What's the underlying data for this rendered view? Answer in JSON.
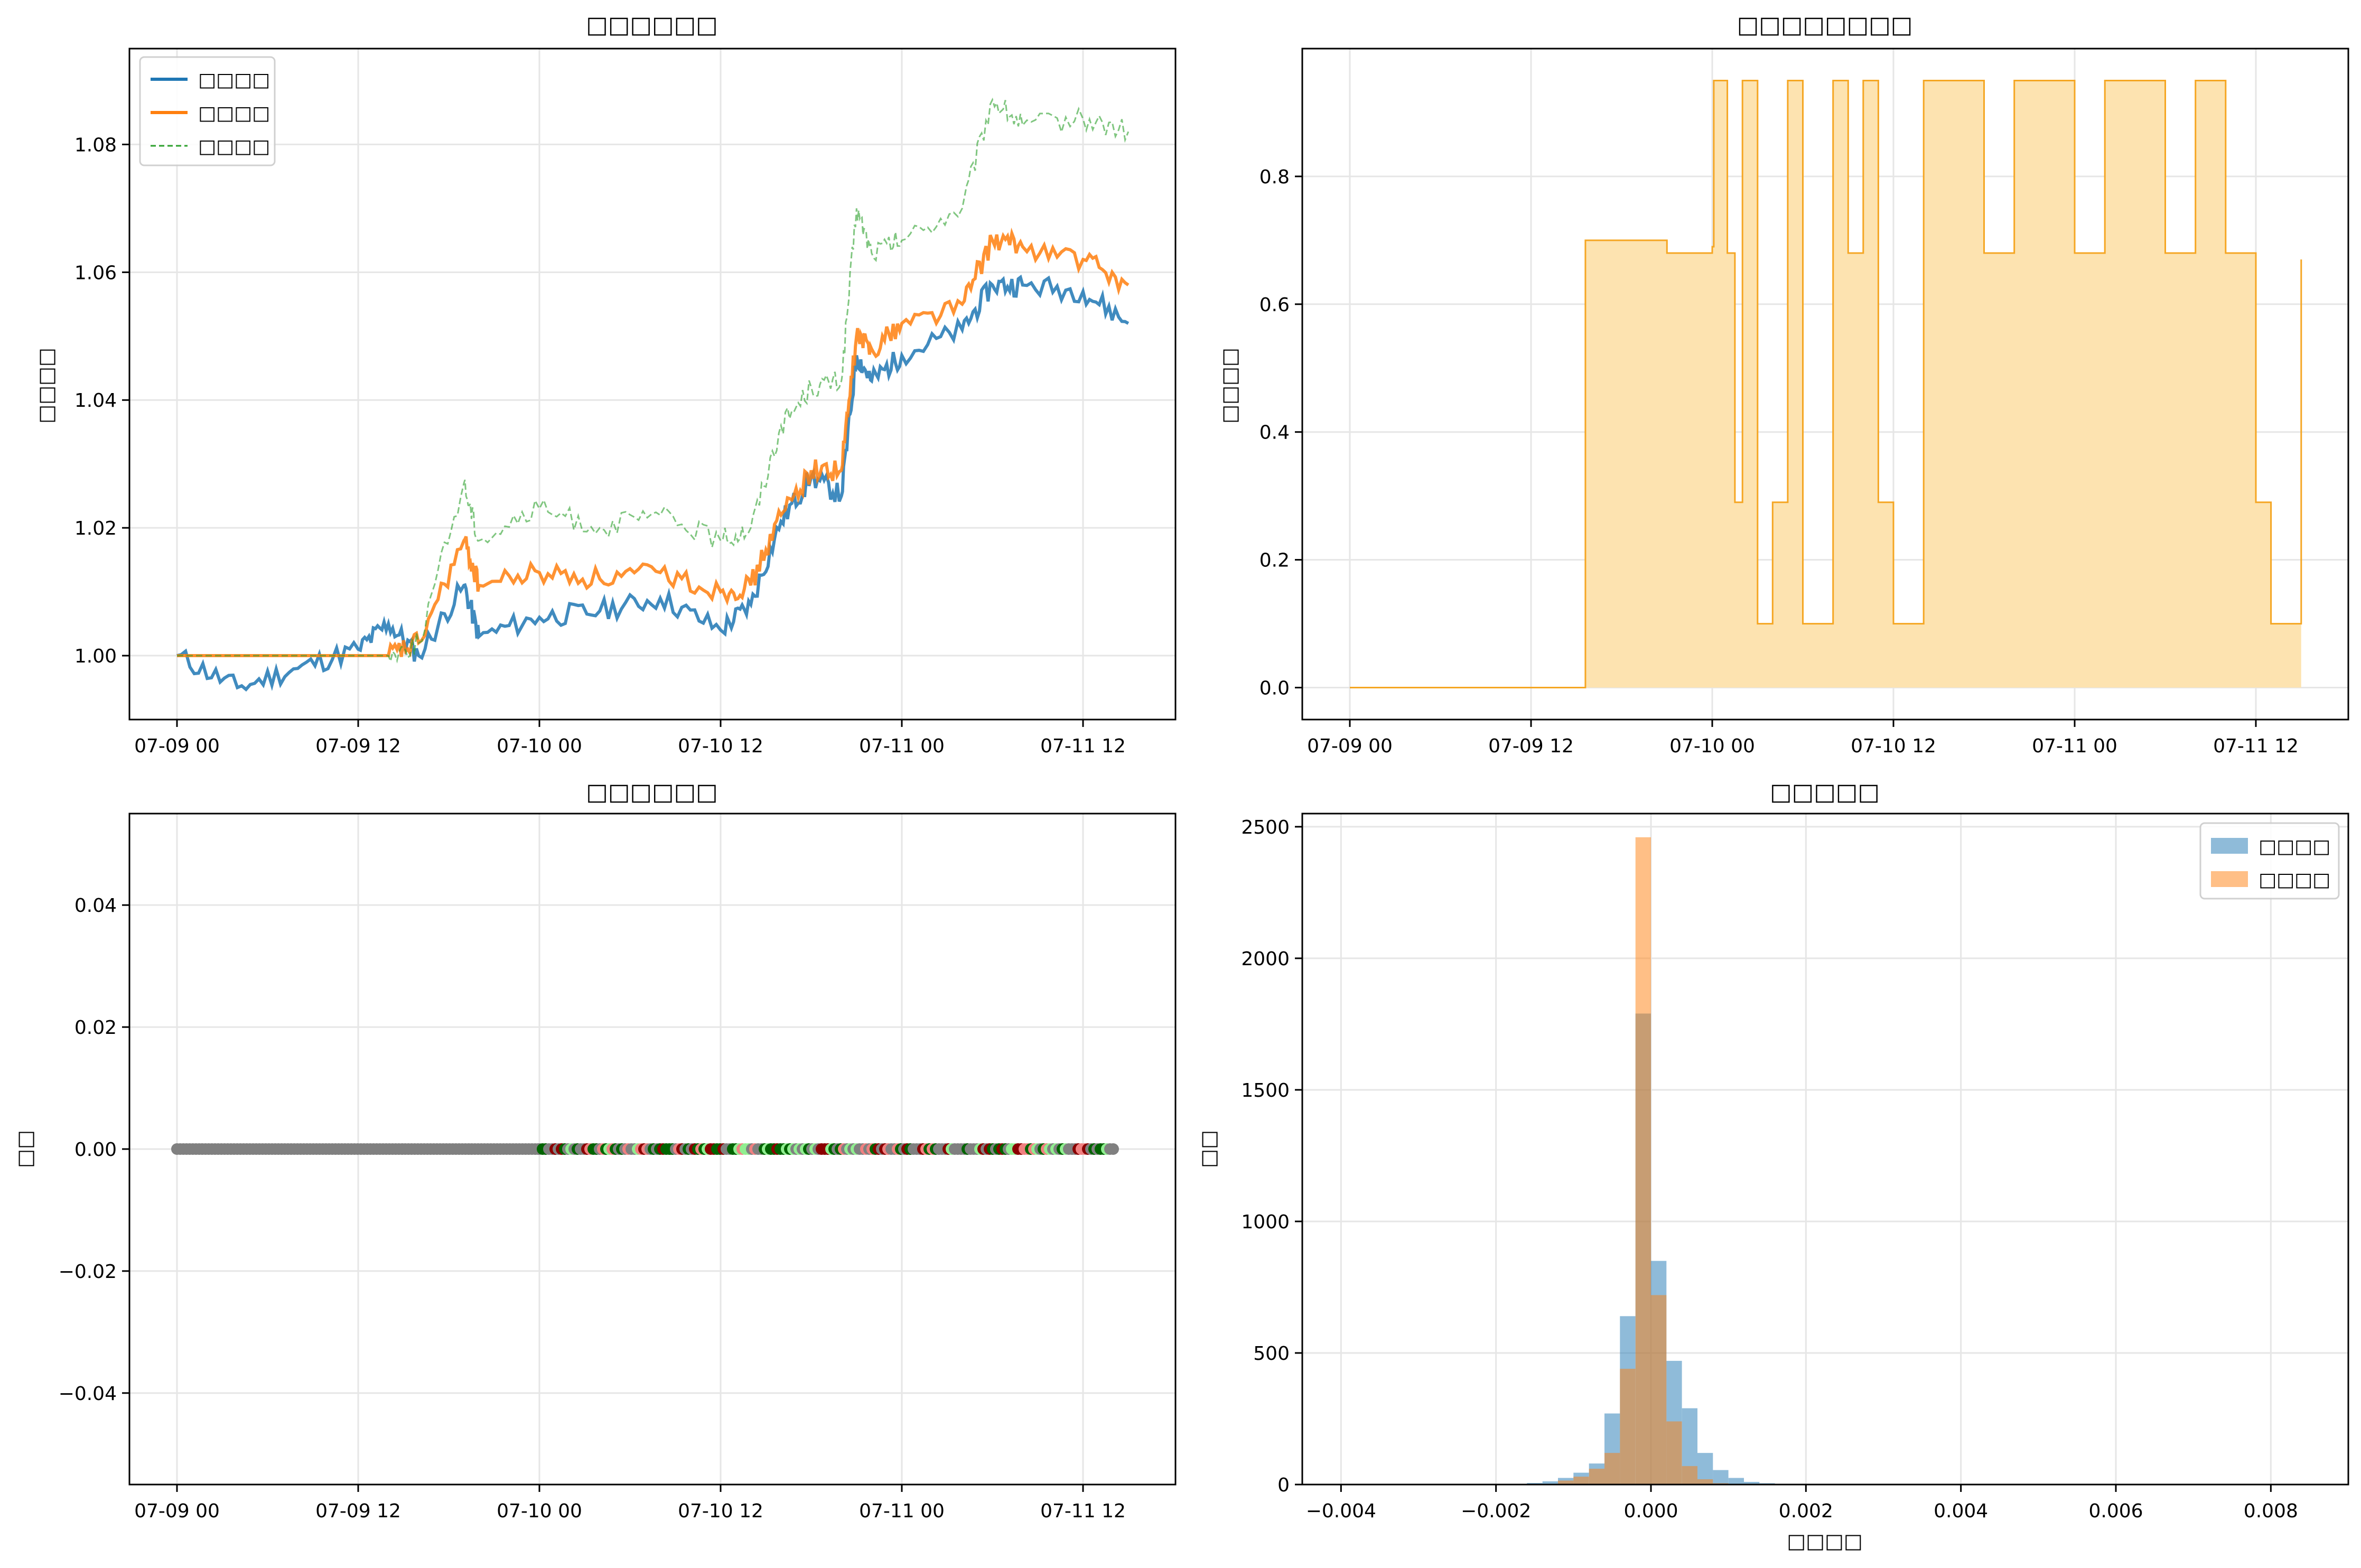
{
  "panels": [
    {
      "title": "□□□□□□",
      "ylabel": "□□□□"
    },
    {
      "title": "□□□□□□□□",
      "ylabel": "□□□□"
    },
    {
      "title": "□□□□□□",
      "ylabel": "□□"
    },
    {
      "title": "□□□□□",
      "ylabel": "□□",
      "xlabel": "□□□□"
    }
  ],
  "colors": {
    "blue": "#1f77b4",
    "orange": "#ff7f0e",
    "green": "#2ca02c",
    "position": "#f5a623",
    "position_fill": "#fde3b0",
    "gray": "#808080",
    "dark_green": "#006400",
    "light_green": "#90ee90",
    "dark_red": "#8b0000",
    "light_red": "#f08080"
  },
  "chart_data": [
    {
      "type": "line",
      "title": "□□□□□□",
      "ylabel": "□□□□",
      "xlabel": "",
      "grid": true,
      "legend": "top-left",
      "xlim": [
        "07-09 00",
        "07-11 15"
      ],
      "ylim": [
        0.99,
        1.095
      ],
      "xticks": [
        "07-09 00",
        "07-09 12",
        "07-10 00",
        "07-10 12",
        "07-11 00",
        "07-11 12"
      ],
      "yticks": [
        "1.00",
        "1.02",
        "1.04",
        "1.06",
        "1.08"
      ],
      "x": [
        "07-09 00",
        "07-09 04",
        "07-09 08",
        "07-09 12",
        "07-09 14",
        "07-09 16",
        "07-09 19",
        "07-09 20",
        "07-10 00",
        "07-10 04",
        "07-10 08",
        "07-10 12",
        "07-10 14",
        "07-10 16",
        "07-10 18",
        "07-10 20",
        "07-10 21",
        "07-10 22",
        "07-11 00",
        "07-11 04",
        "07-11 06",
        "07-11 08",
        "07-11 12",
        "07-11 15"
      ],
      "series": [
        {
          "name": "□□□□",
          "style": "solid",
          "values": [
            1.0,
            0.995,
            0.998,
            1.001,
            1.005,
            1.0,
            1.011,
            1.003,
            1.006,
            1.007,
            1.009,
            1.004,
            1.008,
            1.021,
            1.028,
            1.025,
            1.047,
            1.043,
            1.047,
            1.051,
            1.058,
            1.058,
            1.057,
            1.052
          ]
        },
        {
          "name": "□□□□",
          "style": "solid",
          "values": [
            1.0,
            1.0,
            1.0,
            1.0,
            1.0,
            1.002,
            1.018,
            1.011,
            1.013,
            1.012,
            1.013,
            1.01,
            1.011,
            1.022,
            1.029,
            1.029,
            1.05,
            1.048,
            1.052,
            1.055,
            1.065,
            1.064,
            1.062,
            1.058
          ]
        },
        {
          "name": "□□□□",
          "style": "dashed",
          "values": [
            1.0,
            1.0,
            1.0,
            1.0,
            1.0,
            1.002,
            1.027,
            1.018,
            1.023,
            1.02,
            1.022,
            1.018,
            1.02,
            1.036,
            1.042,
            1.043,
            1.07,
            1.063,
            1.065,
            1.07,
            1.087,
            1.083,
            1.084,
            1.082
          ]
        }
      ]
    },
    {
      "type": "area",
      "title": "□□□□□□□□",
      "ylabel": "□□□□",
      "grid": true,
      "xlim": [
        "07-09 00",
        "07-11 15"
      ],
      "ylim": [
        -0.05,
        1.0
      ],
      "xticks": [
        "07-09 00",
        "07-09 12",
        "07-10 00",
        "07-10 12",
        "07-11 00",
        "07-11 12"
      ],
      "yticks": [
        "0.0",
        "0.2",
        "0.4",
        "0.6",
        "0.8"
      ],
      "x": [
        "07-09 00",
        "07-09 15.5",
        "07-09 15.6",
        "07-09 20",
        "07-09 21",
        "07-10 00",
        "07-10 00.1",
        "07-10 01",
        "07-10 01.5",
        "07-10 02",
        "07-10 03",
        "07-10 04",
        "07-10 05",
        "07-10 06",
        "07-10 08",
        "07-10 09",
        "07-10 10",
        "07-10 11",
        "07-10 12",
        "07-10 14",
        "07-10 16",
        "07-10 18",
        "07-10 20",
        "07-10 22",
        "07-11 00",
        "07-11 02",
        "07-11 04",
        "07-11 06",
        "07-11 08",
        "07-11 10",
        "07-11 12",
        "07-11 13",
        "07-11 15"
      ],
      "series": [
        {
          "name": "",
          "values": [
            0,
            0,
            0.7,
            0.7,
            0.68,
            0.69,
            0.95,
            0.68,
            0.29,
            0.95,
            0.1,
            0.29,
            0.95,
            0.1,
            0.95,
            0.68,
            0.95,
            0.29,
            0.1,
            0.95,
            0.95,
            0.68,
            0.95,
            0.95,
            0.68,
            0.95,
            0.95,
            0.68,
            0.95,
            0.68,
            0.29,
            0.1,
            0.67
          ]
        }
      ]
    },
    {
      "type": "scatter",
      "title": "□□□□□□",
      "ylabel": "□□",
      "grid": true,
      "xlim": [
        "07-09 00",
        "07-11 15"
      ],
      "ylim": [
        -0.055,
        0.055
      ],
      "xticks": [
        "07-09 00",
        "07-09 12",
        "07-10 00",
        "07-10 12",
        "07-11 00",
        "07-11 12"
      ],
      "yticks": [
        "0.04",
        "0.02",
        "0.00",
        "−0.02",
        "−0.04"
      ],
      "y_value": 0.0,
      "segments": [
        {
          "from": "07-09 00",
          "to": "07-10 00",
          "class": "gray"
        },
        {
          "from": "07-10 00",
          "to": "07-11 14",
          "class": "mixed"
        }
      ]
    },
    {
      "type": "bar",
      "title": "□□□□□",
      "ylabel": "□□",
      "xlabel": "□□□□",
      "grid": true,
      "legend": "top-right",
      "xlim": [
        -0.0045,
        0.009
      ],
      "ylim": [
        0,
        2550
      ],
      "xticks": [
        "−0.004",
        "−0.002",
        "0.000",
        "0.002",
        "0.004",
        "0.006",
        "0.008"
      ],
      "yticks": [
        "0",
        "500",
        "1000",
        "1500",
        "2000",
        "2500"
      ],
      "bin_width": 0.0002,
      "series": [
        {
          "name": "□□□□",
          "bins": [
            -0.0016,
            -0.0014,
            -0.0012,
            -0.001,
            -0.0008,
            -0.0006,
            -0.0004,
            -0.0002,
            0.0,
            0.0002,
            0.0004,
            0.0006,
            0.0008,
            0.001,
            0.0012,
            0.0014
          ],
          "values": [
            6,
            12,
            25,
            45,
            80,
            270,
            640,
            1790,
            850,
            470,
            290,
            120,
            55,
            25,
            10,
            5
          ]
        },
        {
          "name": "□□□□",
          "bins": [
            -0.0012,
            -0.001,
            -0.0008,
            -0.0006,
            -0.0004,
            -0.0002,
            0.0,
            0.0002,
            0.0004,
            0.0006,
            0.0008
          ],
          "values": [
            15,
            30,
            60,
            120,
            440,
            2460,
            720,
            240,
            70,
            20,
            5
          ]
        }
      ]
    }
  ]
}
